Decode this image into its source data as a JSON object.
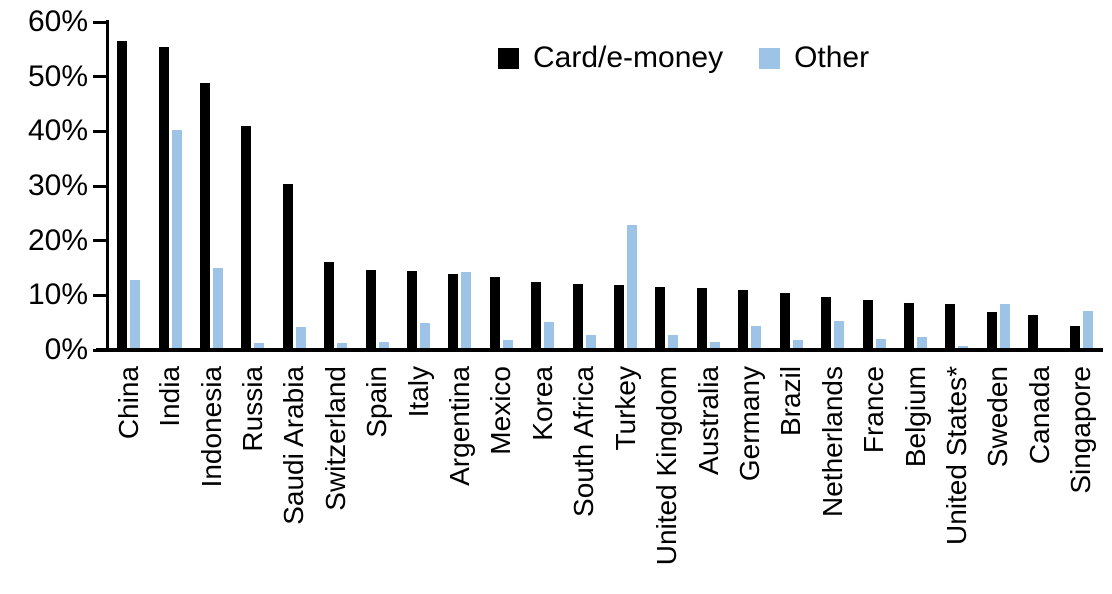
{
  "chart_data": {
    "type": "bar",
    "title": "",
    "xlabel": "",
    "ylabel": "",
    "categories": [
      "China",
      "India",
      "Indonesia",
      "Russia",
      "Saudi Arabia",
      "Switzerland",
      "Spain",
      "Italy",
      "Argentina",
      "Mexico",
      "Korea",
      "South Africa",
      "Turkey",
      "United Kingdom",
      "Australia",
      "Germany",
      "Brazil",
      "Netherlands",
      "France",
      "Belgium",
      "United States*",
      "Sweden",
      "Canada",
      "Singapore"
    ],
    "series": [
      {
        "name": "Card/e-money",
        "color": "#000000",
        "values": [
          56.2,
          55.1,
          48.5,
          40.6,
          30.0,
          15.7,
          14.2,
          14.1,
          13.5,
          13.0,
          12.1,
          11.8,
          11.6,
          11.1,
          10.9,
          10.7,
          10.1,
          9.3,
          8.8,
          8.3,
          8.0,
          6.5,
          6.0,
          4.0
        ]
      },
      {
        "name": "Other",
        "color": "#9DC3E6",
        "values": [
          12.4,
          39.8,
          14.7,
          1.0,
          3.9,
          0.9,
          1.1,
          4.6,
          13.9,
          1.4,
          4.7,
          2.4,
          22.5,
          2.3,
          1.1,
          4.1,
          1.4,
          5.0,
          1.7,
          2.1,
          0.3,
          8.1,
          0.0,
          6.7
        ]
      }
    ],
    "ylim": [
      0,
      60
    ],
    "y_tick_labels": [
      "0%",
      "10%",
      "20%",
      "30%",
      "40%",
      "50%",
      "60%"
    ],
    "grid": false,
    "legend_position": "top-center",
    "axis_color": "#000000"
  }
}
